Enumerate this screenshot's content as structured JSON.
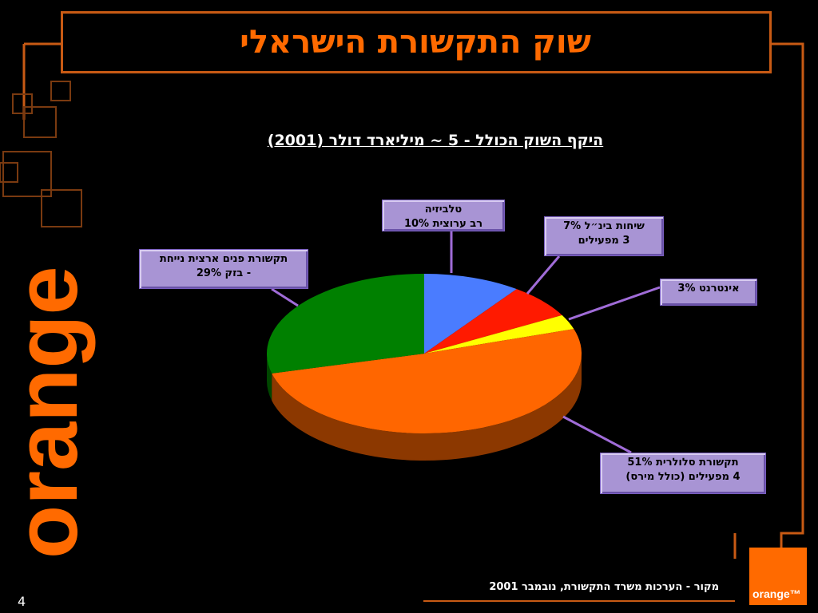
{
  "slide": {
    "title": "שוק התקשורת הישראלי",
    "source": "מקור - הערכות משרד התקשורת, נובמבר 2001",
    "page_number": "4",
    "brand_word": "orange",
    "logo_text": "orange™"
  },
  "colors": {
    "accent": "#ff6a00",
    "frame": "#c85a14",
    "label_box": "#a894d4"
  },
  "chart_data": {
    "type": "pie",
    "title": "היקף השוק הכולל - 5 ~ מיליארד דולר (2001)",
    "slices": [
      {
        "value": 10,
        "color": "#4a7cff",
        "label_lines": [
          "טלביזיה",
          "רב ערוצית  10%"
        ]
      },
      {
        "value": 7,
        "color": "#ff1a00",
        "label_lines": [
          "שיחות בינ״ל 7%",
          "3 מפעילים"
        ]
      },
      {
        "value": 3,
        "color": "#ffff00",
        "label_lines": [
          "אינטרנט  3%"
        ]
      },
      {
        "value": 51,
        "color": "#ff6600",
        "label_lines": [
          "תקשורת סלולרית 51%",
          "4 מפעילים (כולל מירס)"
        ]
      },
      {
        "value": 29,
        "color": "#008000",
        "label_lines": [
          "תקשורת פנים ארצית נייחת",
          "- בזק  29%"
        ]
      }
    ]
  }
}
